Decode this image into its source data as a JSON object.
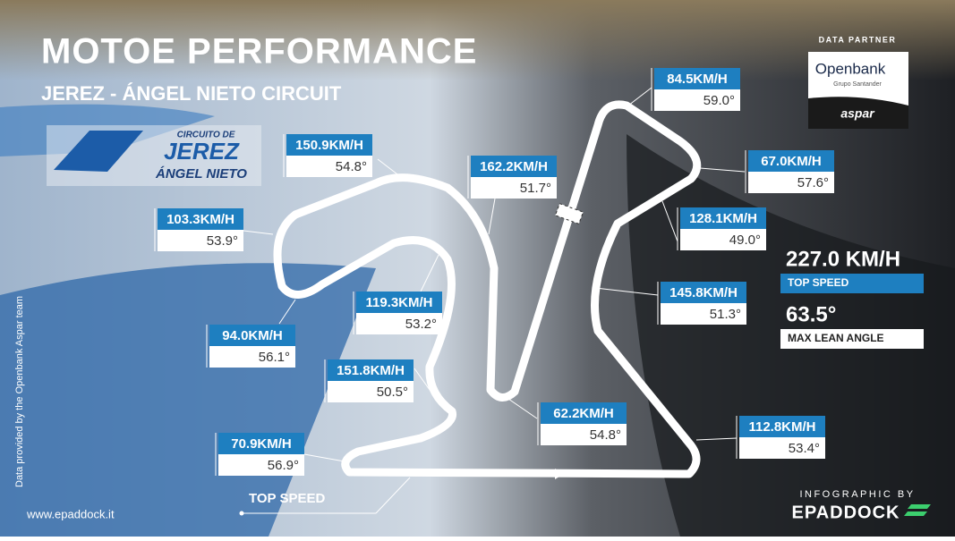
{
  "header": {
    "title": "MOTOE PERFORMANCE",
    "subtitle": "JEREZ - ÁNGEL NIETO CIRCUIT"
  },
  "circuit_logo": {
    "line1": "CIRCUITO DE",
    "line2": "JEREZ",
    "line3": "ÁNGEL NIETO"
  },
  "partner": {
    "label": "DATA PARTNER",
    "name": "Openbank",
    "group": "Grupo Santander",
    "team": "aspar"
  },
  "corners": [
    {
      "speed": "84.5KM/H",
      "angle": "59.0°"
    },
    {
      "speed": "67.0KM/H",
      "angle": "57.6°"
    },
    {
      "speed": "162.2KM/H",
      "angle": "51.7°"
    },
    {
      "speed": "150.9KM/H",
      "angle": "54.8°"
    },
    {
      "speed": "103.3KM/H",
      "angle": "53.9°"
    },
    {
      "speed": "128.1KM/H",
      "angle": "49.0°"
    },
    {
      "speed": "145.8KM/H",
      "angle": "51.3°"
    },
    {
      "speed": "119.3KM/H",
      "angle": "53.2°"
    },
    {
      "speed": "94.0KM/H",
      "angle": "56.1°"
    },
    {
      "speed": "151.8KM/H",
      "angle": "50.5°"
    },
    {
      "speed": "62.2KM/H",
      "angle": "54.8°"
    },
    {
      "speed": "112.8KM/H",
      "angle": "53.4°"
    },
    {
      "speed": "70.9KM/H",
      "angle": "56.9°"
    }
  ],
  "stats": {
    "top_speed": "227.0 KM/H",
    "top_speed_label": "TOP SPEED",
    "max_lean": "63.5°",
    "max_lean_label": "MAX LEAN ANGLE"
  },
  "legend": "TOP SPEED",
  "credits": {
    "side": "Data provided by the Openbank Aspar team",
    "website": "www.epaddock.it",
    "infographic_by": "INFOGRAPHIC BY",
    "brand": "EPADDOCK"
  }
}
